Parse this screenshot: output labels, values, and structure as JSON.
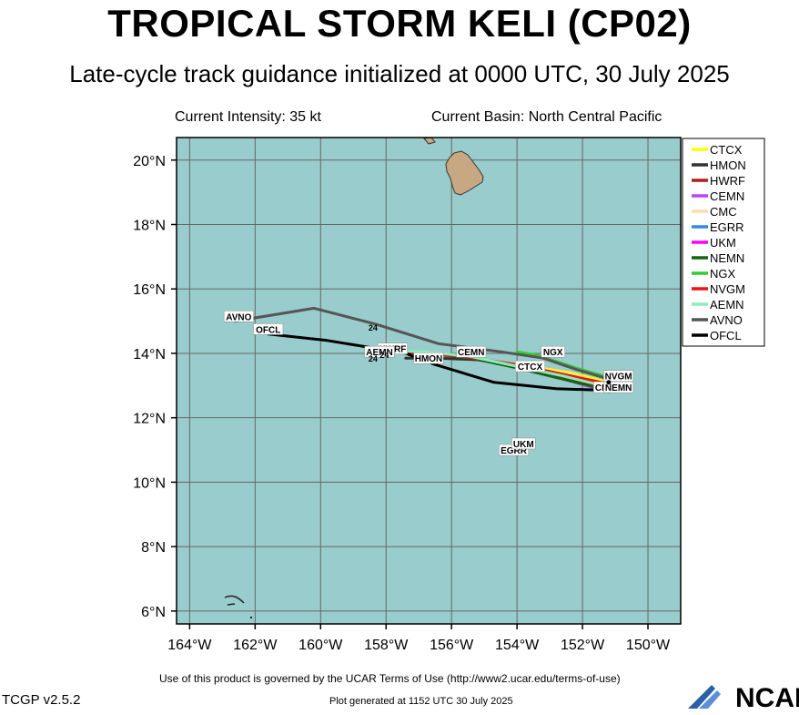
{
  "header": {
    "title": "TROPICAL STORM KELI (CP02)",
    "subtitle": "Late-cycle track guidance initialized at 0000 UTC, 30 July 2025",
    "current_intensity": "Current Intensity: 35 kt",
    "current_basin": "Current Basin: North Central Pacific"
  },
  "footer": {
    "terms": "Use of this product is governed by the UCAR Terms of Use (http://www2.ucar.edu/terms-of-use)",
    "generated": "Plot generated at 1152 UTC   30 July 2025",
    "version": "TCGP v2.5.2",
    "logo": "NCAR"
  },
  "colors": {
    "ocean": "#99cccc",
    "land": "#c8a882",
    "grid": "#666666"
  },
  "chart_data": {
    "type": "line",
    "xlim": [
      -164.4,
      -149.0
    ],
    "ylim": [
      5.6,
      20.7
    ],
    "x_ticks": [
      -164,
      -162,
      -160,
      -158,
      -156,
      -154,
      -152,
      -150
    ],
    "x_tick_labels": [
      "164°W",
      "162°W",
      "160°W",
      "158°W",
      "156°W",
      "154°W",
      "152°W",
      "150°W"
    ],
    "y_ticks": [
      6,
      8,
      10,
      12,
      14,
      16,
      18,
      20
    ],
    "y_tick_labels": [
      "6°N",
      "8°N",
      "10°N",
      "12°N",
      "14°N",
      "16°N",
      "18°N",
      "20°N"
    ],
    "grid": true,
    "legend_position": "right",
    "series": [
      {
        "name": "CTCX",
        "color": "#ffff00",
        "points": [
          [
            -151.2,
            13.1
          ],
          [
            -152.4,
            13.4
          ],
          [
            -153.6,
            13.6
          ]
        ],
        "label": [
          -153.6,
          13.6
        ]
      },
      {
        "name": "HMON",
        "color": "#333333",
        "points": [
          [
            -151.2,
            12.9
          ],
          [
            -152.6,
            13.3
          ],
          [
            -154.0,
            13.6
          ],
          [
            -155.2,
            13.8
          ],
          [
            -156.4,
            13.85
          ],
          [
            -157.4,
            13.85
          ]
        ],
        "label": [
          -156.7,
          13.85
        ]
      },
      {
        "name": "HWRF",
        "color": "#aa2222",
        "points": [
          [
            -151.2,
            12.9
          ],
          [
            -152.8,
            13.3
          ],
          [
            -154.4,
            13.7
          ],
          [
            -156.0,
            13.95
          ],
          [
            -157.5,
            14.05
          ],
          [
            -158.0,
            14.1
          ]
        ],
        "label": [
          -157.8,
          14.15
        ]
      },
      {
        "name": "CEMN",
        "color": "#bb44ff",
        "points": [
          [
            -151.2,
            12.8
          ],
          [
            -152.4,
            13.15
          ],
          [
            -153.6,
            13.45
          ],
          [
            -154.8,
            13.75
          ],
          [
            -155.6,
            13.95
          ]
        ],
        "label": [
          -155.4,
          14.05
        ]
      },
      {
        "name": "CMC",
        "color": "#ffddaa",
        "points": [
          [
            -151.2,
            13.0
          ],
          [
            -152.2,
            13.3
          ],
          [
            -153.2,
            13.5
          ]
        ],
        "label": [
          -151.3,
          12.95
        ]
      },
      {
        "name": "EGRR",
        "color": "#3388ee",
        "points": [
          [
            -154.0,
            11.0
          ],
          [
            -154.1,
            11.05
          ]
        ],
        "label": [
          -154.1,
          11.0
        ]
      },
      {
        "name": "UKM",
        "color": "#ff00ff",
        "points": [
          [
            -153.8,
            11.0
          ],
          [
            -153.9,
            11.05
          ]
        ],
        "label": [
          -153.8,
          11.2
        ]
      },
      {
        "name": "NEMN",
        "color": "#116611",
        "points": [
          [
            -151.2,
            12.85
          ],
          [
            -152.6,
            13.2
          ],
          [
            -154.0,
            13.55
          ],
          [
            -155.4,
            13.85
          ],
          [
            -156.8,
            14.0
          ],
          [
            -158.0,
            14.1
          ]
        ],
        "label": [
          -150.9,
          12.95
        ]
      },
      {
        "name": "NGX",
        "color": "#33cc33",
        "points": [
          [
            -151.2,
            13.25
          ],
          [
            -152.2,
            13.55
          ],
          [
            -153.4,
            13.95
          ],
          [
            -154.0,
            14.05
          ]
        ],
        "label": [
          -152.9,
          14.05
        ]
      },
      {
        "name": "NVGM",
        "color": "#ee1111",
        "points": [
          [
            -151.2,
            13.05
          ],
          [
            -152.6,
            13.35
          ],
          [
            -154.0,
            13.65
          ],
          [
            -155.6,
            13.9
          ],
          [
            -157.0,
            14.0
          ],
          [
            -158.0,
            14.05
          ]
        ],
        "label": [
          -150.9,
          13.3
        ]
      },
      {
        "name": "AEMN",
        "color": "#88eebb",
        "points": [
          [
            -151.2,
            12.95
          ],
          [
            -152.6,
            13.3
          ],
          [
            -154.0,
            13.6
          ],
          [
            -155.4,
            13.9
          ],
          [
            -156.8,
            14.05
          ],
          [
            -158.2,
            14.1
          ]
        ],
        "label": [
          -158.2,
          14.05
        ]
      },
      {
        "name": "AVNO",
        "color": "#555555",
        "points": [
          [
            -151.2,
            13.2
          ],
          [
            -152.2,
            13.5
          ],
          [
            -153.2,
            13.85
          ],
          [
            -154.5,
            14.05
          ],
          [
            -156.4,
            14.3
          ],
          [
            -158.3,
            14.9
          ],
          [
            -160.2,
            15.4
          ],
          [
            -162.0,
            15.1
          ],
          [
            -162.6,
            15.0
          ]
        ],
        "label": [
          -162.5,
          15.15
        ]
      },
      {
        "name": "OFCL",
        "color": "#000000",
        "points": [
          [
            -151.2,
            12.85
          ],
          [
            -152.8,
            12.9
          ],
          [
            -154.7,
            13.1
          ],
          [
            -156.5,
            13.65
          ],
          [
            -157.4,
            14.0
          ],
          [
            -159.8,
            14.4
          ],
          [
            -161.6,
            14.6
          ]
        ],
        "label": [
          -161.6,
          14.75
        ]
      }
    ],
    "annotations": [
      {
        "text": "24",
        "x": -158.4,
        "y": 14.7
      },
      {
        "text": "24",
        "x": -158.05,
        "y": 13.85
      },
      {
        "text": "24",
        "x": -158.4,
        "y": 13.75
      }
    ]
  }
}
